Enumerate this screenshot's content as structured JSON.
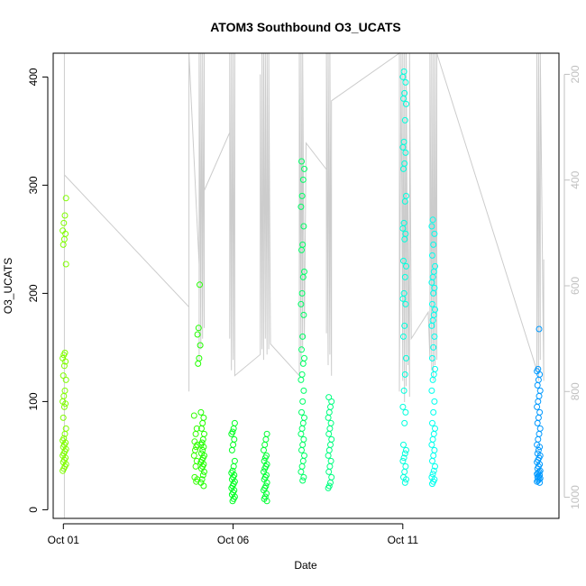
{
  "chart_data": {
    "type": "scatter",
    "title": "ATOM3 Southbound O3_UCATS",
    "xlabel": "Date",
    "ylabel": "O3_UCATS",
    "x_ticks": [
      "Oct 01",
      "Oct 06",
      "Oct 11"
    ],
    "x_tick_days": [
      1,
      6,
      11
    ],
    "x_range_days": [
      0.7,
      15.6
    ],
    "y_ticks": [
      0,
      100,
      200,
      300,
      400
    ],
    "ylim": [
      -8,
      422
    ],
    "right_axis": {
      "label": "",
      "ticks": [
        200,
        400,
        600,
        800,
        1000
      ],
      "range": [
        1040,
        160
      ],
      "reversed": true,
      "color": "#c0c0c0"
    },
    "grid": false,
    "point_series": [
      {
        "day": 1.03,
        "color": "#80ff00",
        "values": [
          36,
          38,
          40,
          42,
          44,
          46,
          48,
          50,
          52,
          54,
          56,
          58,
          60,
          62,
          64,
          66,
          70,
          75,
          85,
          95,
          98,
          100,
          105,
          110,
          120,
          124,
          133,
          137,
          140,
          143,
          145,
          227,
          245,
          250,
          255,
          258,
          265,
          272,
          288
        ]
      },
      {
        "day": 4.9,
        "color": "#33ff00",
        "values": [
          26,
          28,
          30,
          40,
          45,
          50,
          55,
          58,
          60,
          63,
          70,
          75,
          87
        ]
      },
      {
        "day": 5.0,
        "color": "#22ff00",
        "values": [
          135,
          140,
          152,
          162,
          168,
          208
        ]
      },
      {
        "day": 5.1,
        "color": "#22ff00",
        "values": [
          22,
          25,
          28,
          32,
          35,
          38,
          40,
          42,
          44,
          46,
          48,
          50,
          52,
          55,
          58,
          60,
          62,
          65,
          70,
          75,
          80,
          85,
          90
        ]
      },
      {
        "day": 6.0,
        "color": "#00ff22",
        "values": [
          8,
          10,
          12,
          14,
          16,
          18,
          20,
          22,
          24,
          26,
          28,
          30,
          32,
          34,
          36,
          40,
          45,
          55,
          60,
          65,
          70,
          72,
          75,
          80
        ]
      },
      {
        "day": 6.95,
        "color": "#00ff33",
        "values": [
          8,
          10,
          12,
          15,
          18,
          20,
          22,
          25,
          28,
          30,
          32,
          35,
          38,
          40,
          42,
          45,
          48,
          50,
          55,
          60,
          65,
          70
        ]
      },
      {
        "day": 8.05,
        "color": "#00ff66",
        "values": [
          27,
          30,
          35,
          40,
          45,
          50,
          55,
          60,
          65,
          70,
          75,
          80,
          85,
          90,
          100,
          110,
          120,
          125,
          135,
          140,
          148,
          160,
          180,
          190,
          200,
          215,
          220,
          240,
          245,
          262,
          280,
          290,
          305,
          315,
          322
        ]
      },
      {
        "day": 8.85,
        "color": "#00ff80",
        "values": [
          20,
          22,
          25,
          30,
          35,
          40,
          45,
          50,
          55,
          60,
          65,
          70,
          75,
          80,
          85,
          90,
          95,
          100,
          104
        ]
      },
      {
        "day": 11.05,
        "color": "#00ffdd",
        "values": [
          25,
          28,
          30,
          35,
          40,
          45,
          48,
          52,
          55,
          60,
          80,
          90,
          95,
          110,
          125,
          140,
          160,
          170,
          190,
          195,
          200,
          215,
          225,
          230,
          250,
          255,
          260,
          265,
          285,
          290,
          315,
          320,
          330,
          335,
          340,
          360,
          375,
          380,
          385,
          395,
          400,
          405
        ]
      },
      {
        "day": 11.9,
        "color": "#00ffee",
        "values": [
          24,
          26,
          28,
          30,
          33,
          36,
          40,
          45,
          50,
          55,
          60,
          65,
          70,
          75,
          80,
          90,
          100,
          110,
          120,
          125,
          130,
          140,
          150,
          160,
          170,
          175,
          180,
          185,
          190,
          200,
          205,
          210,
          215,
          220,
          225,
          235,
          245,
          255,
          262,
          268
        ]
      },
      {
        "day": 15.0,
        "color": "#0099ff",
        "values": [
          25,
          26,
          27,
          28,
          29,
          30,
          31,
          32,
          33,
          34,
          35,
          36,
          38,
          40,
          42,
          44,
          46,
          48,
          50,
          52,
          55,
          58,
          60,
          65,
          70,
          75,
          80,
          85,
          90,
          95,
          100,
          105,
          110,
          115,
          120,
          125,
          128,
          130,
          167
        ]
      }
    ],
    "pressure_track": {
      "color": "#cccccc",
      "points": [
        [
          1.03,
          1040
        ],
        [
          1.03,
          160
        ],
        [
          1.03,
          680
        ],
        [
          1.03,
          160
        ],
        [
          1.03,
          760
        ],
        [
          1.03,
          160
        ],
        [
          1.03,
          390
        ],
        [
          4.7,
          640
        ],
        [
          4.7,
          540
        ],
        [
          4.7,
          800
        ],
        [
          4.7,
          160
        ],
        [
          5.0,
          560
        ],
        [
          5.0,
          160
        ],
        [
          5.0,
          740
        ],
        [
          5.0,
          160
        ],
        [
          5.05,
          720
        ],
        [
          5.05,
          160
        ],
        [
          5.1,
          700
        ],
        [
          5.1,
          160
        ],
        [
          5.15,
          680
        ],
        [
          5.15,
          160
        ],
        [
          5.15,
          420
        ],
        [
          5.9,
          310
        ],
        [
          5.9,
          700
        ],
        [
          5.9,
          160
        ],
        [
          5.95,
          760
        ],
        [
          5.95,
          160
        ],
        [
          6.0,
          740
        ],
        [
          6.0,
          160
        ],
        [
          6.05,
          770
        ],
        [
          6.05,
          160
        ],
        [
          6.05,
          770
        ],
        [
          6.8,
          730
        ],
        [
          6.8,
          200
        ],
        [
          6.85,
          720
        ],
        [
          6.85,
          160
        ],
        [
          6.9,
          740
        ],
        [
          6.9,
          160
        ],
        [
          6.95,
          700
        ],
        [
          6.95,
          160
        ],
        [
          7.0,
          730
        ],
        [
          7.0,
          160
        ],
        [
          7.05,
          720
        ],
        [
          7.05,
          160
        ],
        [
          7.1,
          710
        ],
        [
          7.95,
          770
        ],
        [
          7.95,
          160
        ],
        [
          8.0,
          750
        ],
        [
          8.0,
          160
        ],
        [
          8.05,
          720
        ],
        [
          8.05,
          160
        ],
        [
          8.1,
          700
        ],
        [
          8.15,
          330
        ],
        [
          8.75,
          380
        ],
        [
          8.75,
          690
        ],
        [
          8.75,
          160
        ],
        [
          8.8,
          750
        ],
        [
          8.8,
          160
        ],
        [
          8.85,
          730
        ],
        [
          8.85,
          160
        ],
        [
          8.9,
          770
        ],
        [
          8.9,
          250
        ],
        [
          10.9,
          160
        ],
        [
          10.9,
          800
        ],
        [
          10.95,
          160
        ],
        [
          11.0,
          780
        ],
        [
          11.0,
          160
        ],
        [
          11.05,
          820
        ],
        [
          11.05,
          160
        ],
        [
          11.1,
          790
        ],
        [
          11.1,
          160
        ],
        [
          11.15,
          750
        ],
        [
          11.15,
          440
        ],
        [
          11.2,
          810
        ],
        [
          11.2,
          160
        ],
        [
          11.25,
          700
        ],
        [
          11.75,
          650
        ],
        [
          11.8,
          740
        ],
        [
          11.8,
          160
        ],
        [
          11.85,
          760
        ],
        [
          11.85,
          160
        ],
        [
          11.9,
          780
        ],
        [
          11.9,
          160
        ],
        [
          11.95,
          750
        ],
        [
          11.95,
          160
        ],
        [
          12.0,
          740
        ],
        [
          12.0,
          160
        ],
        [
          14.95,
          760
        ],
        [
          14.95,
          160
        ],
        [
          15.0,
          780
        ],
        [
          15.0,
          160
        ],
        [
          15.05,
          740
        ],
        [
          15.05,
          160
        ],
        [
          15.15,
          780
        ],
        [
          15.15,
          550
        ]
      ]
    }
  }
}
